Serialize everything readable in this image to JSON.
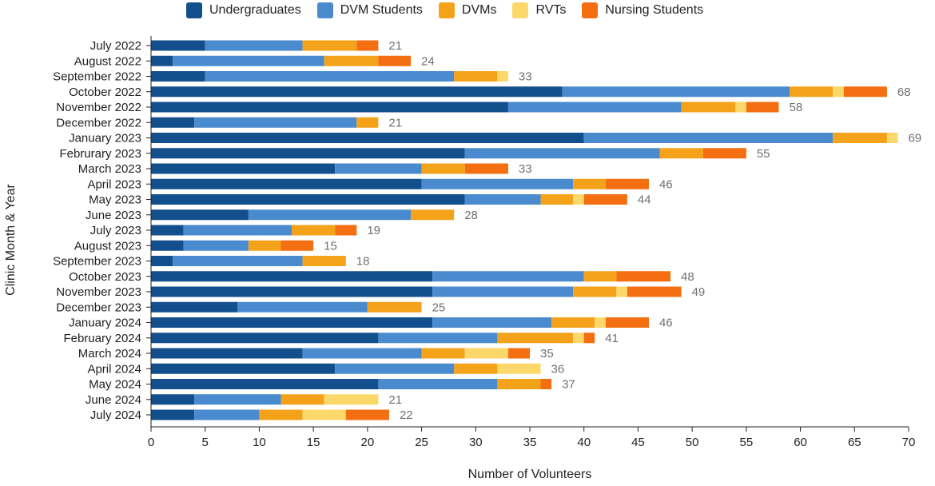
{
  "chart_data": {
    "type": "bar",
    "orientation": "horizontal",
    "stacked": true,
    "xlabel": "Number of Volunteers",
    "ylabel": "Clinic Month & Year",
    "xlim": [
      0,
      70
    ],
    "xticks": [
      0,
      5,
      10,
      15,
      20,
      25,
      30,
      35,
      40,
      45,
      50,
      55,
      60,
      65,
      70
    ],
    "legend_position": "top",
    "categories": [
      "July 2022",
      "August 2022",
      "September 2022",
      "October 2022",
      "November 2022",
      "December 2022",
      "January 2023",
      "Februrary 2023",
      "March 2023",
      "April 2023",
      "May 2023",
      "June 2023",
      "July 2023",
      "August 2023",
      "September 2023",
      "October 2023",
      "November 2023",
      "December 2023",
      "January 2024",
      "February 2024",
      "March 2024",
      "April 2024",
      "May 2024",
      "June 2024",
      "July 2024"
    ],
    "series": [
      {
        "name": "Undergraduates",
        "color": "#134f8c",
        "values": [
          5,
          2,
          5,
          38,
          33,
          4,
          40,
          29,
          17,
          25,
          29,
          9,
          3,
          3,
          2,
          26,
          26,
          8,
          26,
          21,
          14,
          17,
          21,
          4,
          4
        ]
      },
      {
        "name": "DVM Students",
        "color": "#4a8bd0",
        "values": [
          9,
          14,
          23,
          21,
          16,
          15,
          23,
          18,
          8,
          14,
          7,
          15,
          10,
          6,
          12,
          14,
          13,
          12,
          11,
          11,
          11,
          11,
          11,
          8,
          6
        ]
      },
      {
        "name": "DVMs",
        "color": "#f5a21b",
        "values": [
          5,
          5,
          4,
          4,
          5,
          2,
          5,
          4,
          4,
          3,
          3,
          4,
          4,
          3,
          4,
          3,
          4,
          5,
          4,
          7,
          4,
          4,
          4,
          4,
          4
        ]
      },
      {
        "name": "RVTs",
        "color": "#fcd76a",
        "values": [
          0,
          0,
          1,
          1,
          1,
          0,
          1,
          0,
          0,
          0,
          1,
          0,
          0,
          0,
          0,
          0,
          1,
          0,
          1,
          1,
          4,
          4,
          0,
          5,
          4
        ]
      },
      {
        "name": "Nursing Students",
        "color": "#f36f11",
        "values": [
          2,
          3,
          0,
          4,
          3,
          0,
          0,
          4,
          4,
          4,
          4,
          0,
          2,
          3,
          0,
          5,
          5,
          0,
          4,
          1,
          2,
          0,
          1,
          0,
          4
        ]
      }
    ],
    "totals": [
      21,
      24,
      33,
      68,
      58,
      21,
      69,
      55,
      33,
      46,
      44,
      28,
      19,
      15,
      18,
      48,
      49,
      25,
      46,
      41,
      35,
      36,
      37,
      21,
      22
    ],
    "colors": {
      "axis": "#222222",
      "total_label": "#707070"
    }
  }
}
